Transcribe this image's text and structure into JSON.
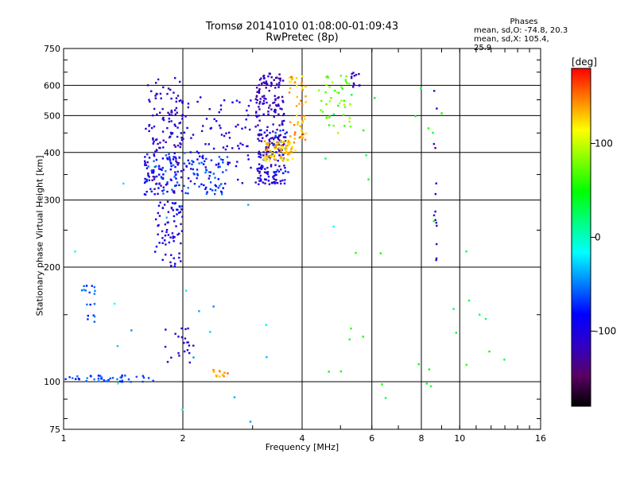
{
  "chart_data": {
    "type": "scatter",
    "title": "Tromsø 20141010 01:08:00-01:09:43",
    "subtitle": "RwPretec (8p)",
    "xlabel": "Frequency [MHz]",
    "ylabel": "Stationary phase Virtual Height [km]",
    "x_scale": "log",
    "y_scale": "log",
    "xlim": [
      1,
      16
    ],
    "ylim": [
      75,
      750
    ],
    "x_ticks": [
      1,
      2,
      4,
      6,
      8,
      10,
      16
    ],
    "y_ticks": [
      75,
      100,
      200,
      300,
      400,
      500,
      600,
      750
    ],
    "grid": true,
    "phase_stats": {
      "heading": "Phases",
      "line_o": "mean, sd,O: -74.8, 20.3",
      "line_x": "mean, sd,X: 105.4, 25.9"
    },
    "colorbar": {
      "label": "[deg]",
      "ticks": [
        100,
        0,
        -100
      ],
      "range": [
        -180,
        180
      ],
      "colors": [
        "#000000",
        "#5a0064",
        "#2f00c8",
        "#0000ff",
        "#0080ff",
        "#00ffff",
        "#00ff80",
        "#00ff00",
        "#80ff00",
        "#ffff00",
        "#ff8000",
        "#ff0000"
      ]
    },
    "clusters": [
      {
        "x": [
          1.6,
          2.0
        ],
        "y": [
          310,
          630
        ],
        "phase": -110,
        "n": 150
      },
      {
        "x": [
          1.6,
          2.6
        ],
        "y": [
          310,
          400
        ],
        "phase": -70,
        "n": 130
      },
      {
        "x": [
          2.0,
          3.0
        ],
        "y": [
          330,
          560
        ],
        "phase": -100,
        "n": 80
      },
      {
        "x": [
          3.05,
          3.6
        ],
        "y": [
          330,
          650
        ],
        "phase": -115,
        "n": 220
      },
      {
        "x": [
          3.1,
          3.7
        ],
        "y": [
          330,
          460
        ],
        "phase": -80,
        "n": 60
      },
      {
        "x": [
          3.2,
          3.85
        ],
        "y": [
          380,
          430
        ],
        "phase": 130,
        "n": 90
      },
      {
        "x": [
          3.7,
          4.1
        ],
        "y": [
          430,
          640
        ],
        "phase": 135,
        "n": 50
      },
      {
        "x": [
          4.4,
          5.3
        ],
        "y": [
          450,
          640
        ],
        "phase": 75,
        "n": 45
      },
      {
        "x": [
          5.3,
          5.6
        ],
        "y": [
          590,
          650
        ],
        "phase": -110,
        "n": 12
      },
      {
        "x": [
          1.7,
          2.0
        ],
        "y": [
          200,
          300
        ],
        "phase": -100,
        "n": 70
      },
      {
        "x": [
          1.1,
          1.2
        ],
        "y": [
          140,
          180
        ],
        "phase": -60,
        "n": 18
      },
      {
        "x": [
          1.0,
          1.7
        ],
        "y": [
          100,
          104
        ],
        "phase": -65,
        "n": 45
      },
      {
        "x": [
          2.35,
          2.6
        ],
        "y": [
          103,
          108
        ],
        "phase": 140,
        "n": 15
      },
      {
        "x": [
          1.8,
          2.15
        ],
        "y": [
          110,
          140
        ],
        "phase": -110,
        "n": 22
      },
      {
        "x": [
          8.6,
          8.75
        ],
        "y": [
          200,
          620
        ],
        "phase": -110,
        "n": 14
      },
      {
        "x": [
          4.5,
          13.0
        ],
        "y": [
          75,
          620
        ],
        "phase": 40,
        "n": 35
      },
      {
        "x": [
          1.0,
          6.0
        ],
        "y": [
          78,
          350
        ],
        "phase": -30,
        "n": 20
      }
    ]
  }
}
